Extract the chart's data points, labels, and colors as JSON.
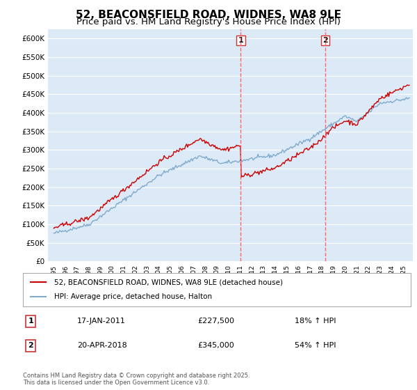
{
  "title": "52, BEACONSFIELD ROAD, WIDNES, WA8 9LE",
  "subtitle": "Price paid vs. HM Land Registry's House Price Index (HPI)",
  "title_fontsize": 11,
  "subtitle_fontsize": 9.5,
  "ylabel_ticks": [
    "£0",
    "£50K",
    "£100K",
    "£150K",
    "£200K",
    "£250K",
    "£300K",
    "£350K",
    "£400K",
    "£450K",
    "£500K",
    "£550K",
    "£600K"
  ],
  "ylim": [
    0,
    620000
  ],
  "xlim_start": 1995.0,
  "xlim_end": 2025.5,
  "bg_color": "#dce9f7",
  "plot_bg_color": "#dce9f7",
  "grid_color": "#ffffff",
  "red_line_color": "#cc0000",
  "blue_line_color": "#7faacc",
  "vline_color": "#ff6666",
  "marker1_x": 2011.04,
  "marker2_x": 2018.3,
  "sale1_label": "1",
  "sale2_label": "2",
  "sale1_price": 227500,
  "sale2_price": 345000,
  "legend_label_red": "52, BEACONSFIELD ROAD, WIDNES, WA8 9LE (detached house)",
  "legend_label_blue": "HPI: Average price, detached house, Halton",
  "table_row1": [
    "1",
    "17-JAN-2011",
    "£227,500",
    "18% ↑ HPI"
  ],
  "table_row2": [
    "2",
    "20-APR-2018",
    "£345,000",
    "54% ↑ HPI"
  ],
  "footer": "Contains HM Land Registry data © Crown copyright and database right 2025.\nThis data is licensed under the Open Government Licence v3.0."
}
